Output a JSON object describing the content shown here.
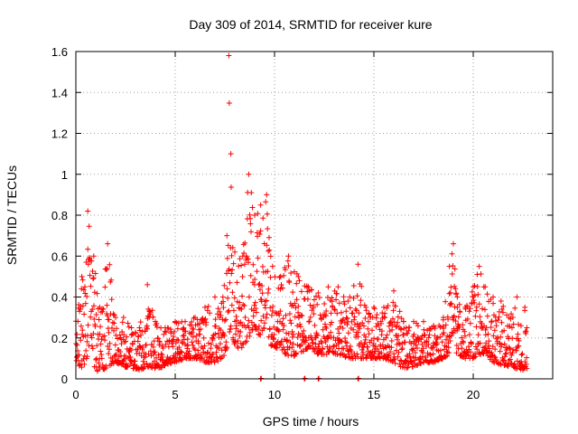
{
  "chart_data": {
    "type": "scatter",
    "title": "Day 309 of 2014, SRMTID for receiver kure",
    "xlabel": "GPS time / hours",
    "ylabel": "SRMTID / TECUs",
    "xlim": [
      0,
      24
    ],
    "ylim": [
      0,
      1.6
    ],
    "x_ticks": [
      0,
      5,
      10,
      15,
      20
    ],
    "x_tick_labels": [
      "0",
      "5",
      "10",
      "15",
      "20"
    ],
    "y_ticks": [
      0,
      0.2,
      0.4,
      0.6,
      0.8,
      1,
      1.2,
      1.4,
      1.6
    ],
    "y_tick_labels": [
      "0",
      "0.2",
      "0.4",
      "0.6",
      "0.8",
      "1",
      "1.2",
      "1.4",
      "1.6"
    ],
    "grid": true,
    "marker": "plus",
    "color": "#ff0000",
    "series": [
      {
        "name": "SRMTID",
        "envelope": [
          [
            0.0,
            0.08,
            0.4
          ],
          [
            0.3,
            0.05,
            0.5
          ],
          [
            0.6,
            0.1,
            0.82
          ],
          [
            0.9,
            0.05,
            0.6
          ],
          [
            1.2,
            0.03,
            0.35
          ],
          [
            1.6,
            0.06,
            0.66
          ],
          [
            2.0,
            0.08,
            0.3
          ],
          [
            2.4,
            0.06,
            0.3
          ],
          [
            2.8,
            0.05,
            0.25
          ],
          [
            3.2,
            0.04,
            0.25
          ],
          [
            3.6,
            0.06,
            0.46
          ],
          [
            4.0,
            0.05,
            0.28
          ],
          [
            4.5,
            0.06,
            0.25
          ],
          [
            5.0,
            0.08,
            0.28
          ],
          [
            5.5,
            0.1,
            0.28
          ],
          [
            6.0,
            0.1,
            0.3
          ],
          [
            6.5,
            0.08,
            0.35
          ],
          [
            7.0,
            0.08,
            0.4
          ],
          [
            7.4,
            0.1,
            0.4
          ],
          [
            7.6,
            0.15,
            0.7
          ],
          [
            7.7,
            0.2,
            1.58
          ],
          [
            7.8,
            0.25,
            1.1
          ],
          [
            8.0,
            0.15,
            0.62
          ],
          [
            8.4,
            0.15,
            0.6
          ],
          [
            8.7,
            0.2,
            1.0
          ],
          [
            9.0,
            0.25,
            0.8
          ],
          [
            9.3,
            0.2,
            0.85
          ],
          [
            9.6,
            0.2,
            0.9
          ],
          [
            9.9,
            0.15,
            0.55
          ],
          [
            10.3,
            0.15,
            0.5
          ],
          [
            10.7,
            0.1,
            0.6
          ],
          [
            11.2,
            0.12,
            0.5
          ],
          [
            11.7,
            0.15,
            0.45
          ],
          [
            12.2,
            0.12,
            0.42
          ],
          [
            12.7,
            0.12,
            0.45
          ],
          [
            13.2,
            0.12,
            0.45
          ],
          [
            13.7,
            0.1,
            0.38
          ],
          [
            14.2,
            0.1,
            0.56
          ],
          [
            14.6,
            0.1,
            0.35
          ],
          [
            15.0,
            0.1,
            0.35
          ],
          [
            15.5,
            0.1,
            0.35
          ],
          [
            16.0,
            0.08,
            0.43
          ],
          [
            16.5,
            0.05,
            0.28
          ],
          [
            17.0,
            0.06,
            0.28
          ],
          [
            17.5,
            0.08,
            0.28
          ],
          [
            18.0,
            0.08,
            0.26
          ],
          [
            18.5,
            0.1,
            0.3
          ],
          [
            18.8,
            0.12,
            0.55
          ],
          [
            19.0,
            0.15,
            0.66
          ],
          [
            19.2,
            0.12,
            0.4
          ],
          [
            19.6,
            0.1,
            0.35
          ],
          [
            20.0,
            0.1,
            0.45
          ],
          [
            20.3,
            0.12,
            0.55
          ],
          [
            20.6,
            0.12,
            0.45
          ],
          [
            21.0,
            0.08,
            0.4
          ],
          [
            21.4,
            0.07,
            0.38
          ],
          [
            21.8,
            0.06,
            0.3
          ],
          [
            22.2,
            0.05,
            0.4
          ],
          [
            22.6,
            0.04,
            0.35
          ],
          [
            22.7,
            0.05,
            0.25
          ]
        ],
        "zero_points": [
          9.3,
          11.5,
          12.2,
          14.2
        ]
      }
    ]
  }
}
